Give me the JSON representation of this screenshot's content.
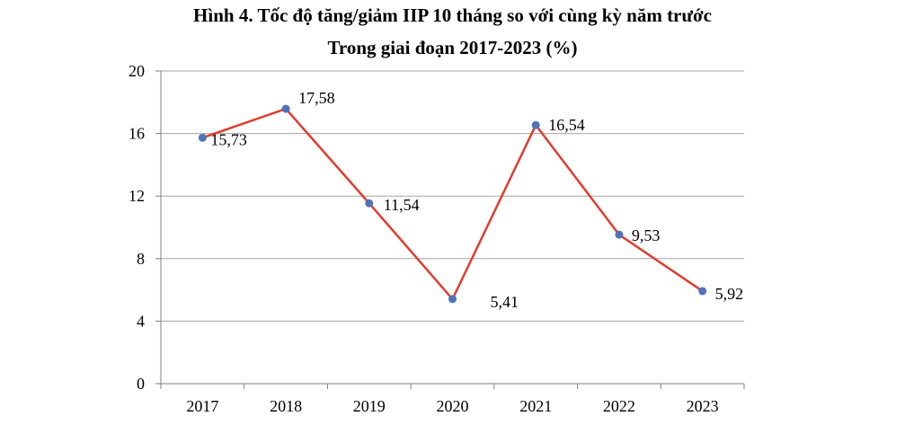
{
  "chart_data": {
    "type": "line",
    "title": "Hình 4. Tốc độ tăng/giảm IIP 10 tháng so với cùng kỳ năm trước",
    "subtitle": "Trong giai đoạn 2017-2023 (%)",
    "categories": [
      "2017",
      "2018",
      "2019",
      "2020",
      "2021",
      "2022",
      "2023"
    ],
    "series": [
      {
        "values": [
          15.73,
          17.58,
          11.54,
          5.41,
          16.54,
          9.53,
          5.92
        ],
        "labels": [
          "15,73",
          "17,58",
          "11,54",
          "5,41",
          "16,54",
          "9,53",
          "5,92"
        ]
      }
    ],
    "ylim": [
      0,
      20
    ],
    "yticks": [
      "0",
      "4",
      "8",
      "12",
      "16",
      "20"
    ],
    "grid": true,
    "legend": "none",
    "colors": {
      "line": "#e03c31",
      "marker": "#4f73b8",
      "grid": "#a6a6a6",
      "axis": "#7f7f7f"
    }
  }
}
